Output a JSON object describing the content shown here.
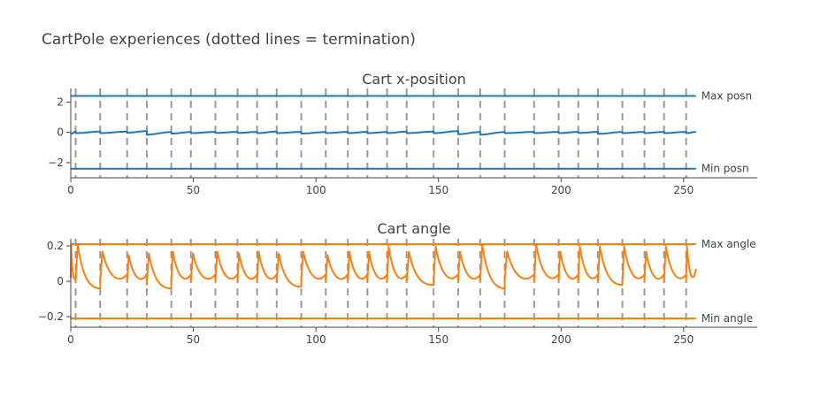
{
  "title": "CartPole experiences (dotted lines = termination)",
  "colors": {
    "position": "#1f77b4",
    "angle": "#ff7f0e",
    "termination": "#999999",
    "axis": "#444444"
  },
  "terminations": [
    2,
    12,
    23,
    31,
    41,
    49,
    59,
    68,
    76,
    84,
    94,
    104,
    113,
    121,
    129,
    137,
    148,
    158,
    167,
    177,
    189,
    199,
    207,
    215,
    225,
    234,
    242,
    251
  ],
  "series_end": 255,
  "chart_data": [
    {
      "type": "line",
      "title": "Cart x-position",
      "xlabel": "",
      "ylabel": "",
      "xlim": [
        0,
        280
      ],
      "ylim": [
        -3,
        2.9
      ],
      "xticks": [
        0,
        50,
        100,
        150,
        200,
        250
      ],
      "yticks": [
        2,
        0,
        -2
      ],
      "ytick_labels": [
        "2",
        "0",
        "−2"
      ],
      "grid": false,
      "series": [
        {
          "values": {
            "start": -0.1,
            "end": 0.05,
            "episodes": [
              [
                -0.1,
                0.05
              ],
              [
                -0.05,
                0.05
              ],
              [
                -0.05,
                0.05
              ],
              [
                -0.02,
                0.08
              ],
              [
                -0.15,
                0.02
              ],
              [
                -0.08,
                0.02
              ],
              [
                -0.05,
                0.03
              ],
              [
                -0.04,
                0.03
              ],
              [
                -0.04,
                0.03
              ],
              [
                -0.05,
                0.05
              ],
              [
                -0.05,
                0.03
              ],
              [
                -0.08,
                0.02
              ],
              [
                -0.05,
                0.03
              ],
              [
                -0.05,
                0.03
              ],
              [
                -0.05,
                0.02
              ],
              [
                -0.05,
                0.05
              ],
              [
                -0.05,
                0.05
              ],
              [
                -0.05,
                0.08
              ],
              [
                -0.12,
                0.02
              ],
              [
                -0.15,
                0.02
              ],
              [
                -0.05,
                0.03
              ],
              [
                -0.05,
                0.03
              ],
              [
                -0.05,
                0.03
              ],
              [
                -0.04,
                0.03
              ],
              [
                -0.1,
                0.02
              ],
              [
                -0.05,
                0.03
              ],
              [
                -0.05,
                0.03
              ],
              [
                -0.05,
                0.03
              ],
              [
                -0.05,
                0.03
              ]
            ]
          }
        }
      ],
      "hlines": [
        {
          "y": 2.4,
          "label": "Max posn"
        },
        {
          "y": -2.4,
          "label": "Min posn"
        }
      ]
    },
    {
      "type": "line",
      "title": "Cart angle",
      "xlabel": "",
      "ylabel": "",
      "xlim": [
        0,
        280
      ],
      "ylim": [
        -0.26,
        0.24
      ],
      "xticks": [
        0,
        50,
        100,
        150,
        200,
        250
      ],
      "yticks": [
        0.2,
        0,
        -0.2
      ],
      "ytick_labels": [
        "0.2",
        "0",
        "−0.2"
      ],
      "grid": false,
      "series": [
        {
          "values": {
            "start": 0.02,
            "end": 0.07,
            "episodes": [
              [
                0.02,
                0.21,
                0.03
              ],
              [
                0.0,
                0.21,
                -0.04
              ],
              [
                0.0,
                0.17,
                0.04
              ],
              [
                0.0,
                0.15,
                0.04
              ],
              [
                -0.02,
                0.16,
                -0.04
              ],
              [
                0.0,
                0.17,
                0.04
              ],
              [
                0.0,
                0.16,
                0.04
              ],
              [
                0.0,
                0.17,
                0.04
              ],
              [
                0.0,
                0.16,
                0.04
              ],
              [
                0.0,
                0.17,
                0.04
              ],
              [
                0.0,
                0.16,
                -0.03
              ],
              [
                0.0,
                0.17,
                0.04
              ],
              [
                0.0,
                0.15,
                0.04
              ],
              [
                0.0,
                0.17,
                0.04
              ],
              [
                0.0,
                0.17,
                0.04
              ],
              [
                0.0,
                0.2,
                0.04
              ],
              [
                0.0,
                0.17,
                -0.02
              ],
              [
                0.0,
                0.2,
                0.04
              ],
              [
                0.0,
                0.17,
                0.04
              ],
              [
                0.0,
                0.21,
                -0.04
              ],
              [
                0.0,
                0.17,
                0.04
              ],
              [
                0.0,
                0.21,
                0.04
              ],
              [
                0.0,
                0.17,
                0.04
              ],
              [
                0.0,
                0.2,
                0.04
              ],
              [
                0.0,
                0.2,
                -0.02
              ],
              [
                0.0,
                0.2,
                0.04
              ],
              [
                0.0,
                0.17,
                0.04
              ],
              [
                0.0,
                0.2,
                0.04
              ],
              [
                0.0,
                0.2,
                0.07
              ]
            ]
          }
        }
      ],
      "hlines": [
        {
          "y": 0.21,
          "label": "Max angle"
        },
        {
          "y": -0.21,
          "label": "Min angle"
        }
      ]
    }
  ]
}
